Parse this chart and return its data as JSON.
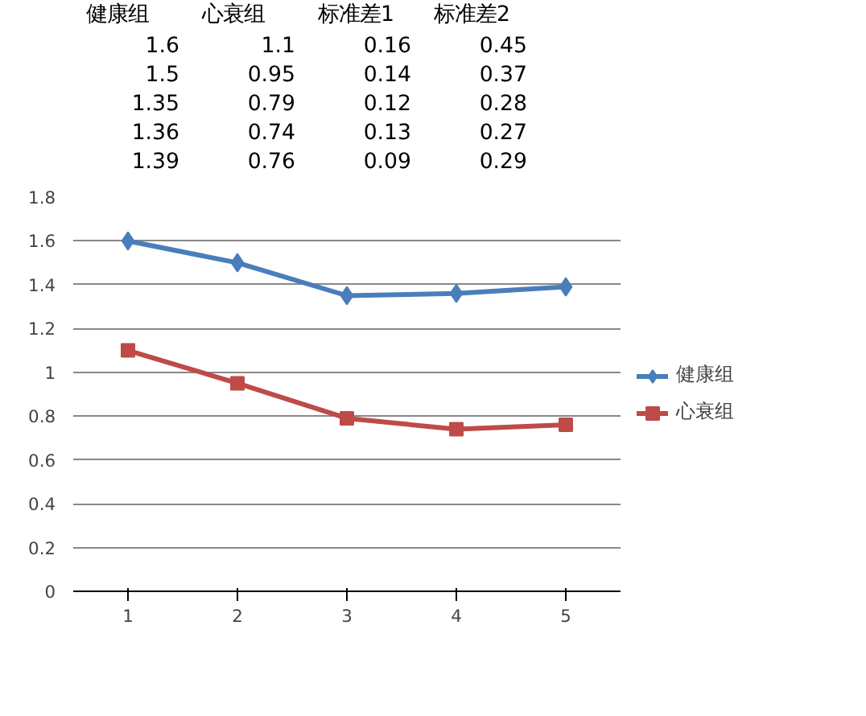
{
  "chart_data": {
    "type": "line",
    "categories": [
      "1",
      "2",
      "3",
      "4",
      "5"
    ],
    "series": [
      {
        "name": "健康组",
        "color": "#4a7ebb",
        "marker": "diamond",
        "values": [
          1.6,
          1.5,
          1.35,
          1.36,
          1.39
        ]
      },
      {
        "name": "心衰组",
        "color": "#be4b48",
        "marker": "square",
        "values": [
          1.1,
          0.95,
          0.79,
          0.74,
          0.76
        ]
      }
    ],
    "ylim": [
      0,
      1.8
    ],
    "yticks": [
      0,
      0.2,
      0.4,
      0.6,
      0.8,
      1,
      1.2,
      1.4,
      1.6,
      1.8
    ],
    "grid": "y",
    "legend": "right",
    "annotations": [
      "健康组",
      "1.6",
      "1.5",
      "1.35",
      "1.36",
      "1.39",
      "心衰组",
      "1.1",
      "0.95",
      "0.79",
      "0.74",
      "0.76",
      "标准差1",
      "0.16",
      "0.14",
      "0.12",
      "0.13",
      "0.09",
      "标准差2",
      "0.45",
      "0.37",
      "0.28",
      "0.27",
      "0.29"
    ]
  }
}
